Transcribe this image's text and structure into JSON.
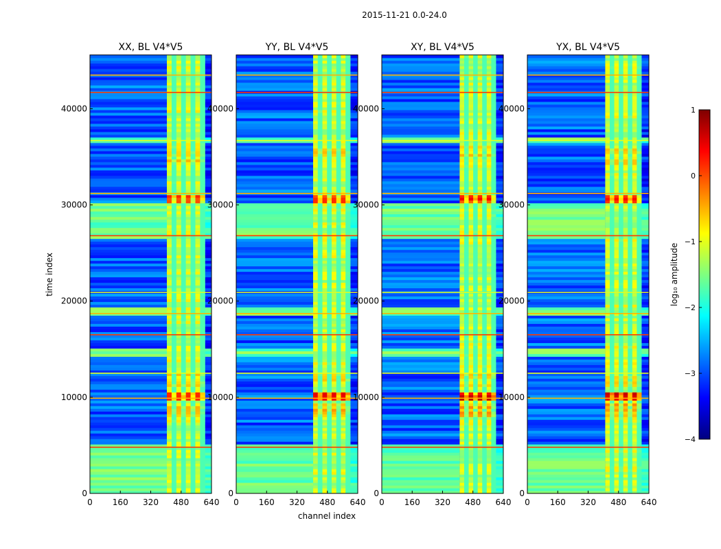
{
  "figure_title": "2015-11-21 0.0-24.0",
  "colors": {
    "jet": [
      "#00007f",
      "#0000ff",
      "#007fff",
      "#00ffff",
      "#7fff7f",
      "#ffff00",
      "#ff7f00",
      "#ff0000",
      "#7f0000"
    ]
  },
  "chart_data": {
    "type": "heatmap",
    "title": "2015-11-21 0.0-24.0",
    "xlabel": "channel index",
    "ylabel": "time index",
    "xlim": [
      0,
      640
    ],
    "ylim": [
      0,
      45600
    ],
    "x_ticks": [
      0,
      160,
      320,
      480,
      640
    ],
    "y_ticks": [
      0,
      10000,
      20000,
      30000,
      40000
    ],
    "colorbar": {
      "label": "log₁₀ amplitude",
      "range": [
        -4,
        1
      ],
      "ticks": [
        1,
        0,
        -1,
        -2,
        -3,
        -4
      ],
      "colormap": "jet"
    },
    "panels": [
      {
        "title": "XX, BL V4*V5",
        "band_start": 405,
        "band_end": 605
      },
      {
        "title": "YY, BL V4*V5",
        "band_start": 405,
        "band_end": 600
      },
      {
        "title": "XY, BL V4*V5",
        "band_start": 410,
        "band_end": 600
      },
      {
        "title": "YX, BL V4*V5",
        "band_start": 410,
        "band_end": 600
      }
    ],
    "hot_rows": [
      {
        "from": 9700,
        "to": 10300,
        "level": 0.95
      },
      {
        "from": 30300,
        "to": 31000,
        "level": 0.9
      },
      {
        "from": 8200,
        "to": 9300,
        "level": 0.75
      },
      {
        "from": 11300,
        "to": 12300,
        "level": 0.7
      },
      {
        "from": 34000,
        "to": 36000,
        "level": 0.7
      }
    ],
    "green_rows": [
      {
        "from": 0,
        "to": 5000
      },
      {
        "from": 36400,
        "to": 37000
      },
      {
        "from": 26500,
        "to": 30000
      },
      {
        "from": 14200,
        "to": 14900
      },
      {
        "from": 18300,
        "to": 19200
      }
    ],
    "flag_rows": [
      4800,
      9900,
      12500,
      16500,
      18700,
      20900,
      26800,
      31200,
      36700,
      41700,
      43500
    ]
  }
}
